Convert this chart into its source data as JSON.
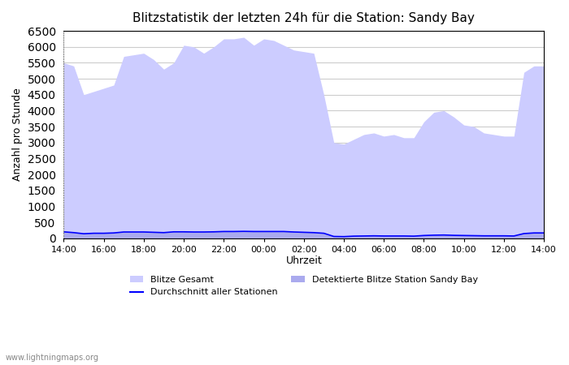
{
  "title": "Blitzstatistik der letzten 24h für die Station: Sandy Bay",
  "xlabel": "Uhrzeit",
  "ylabel": "Anzahl pro Stunde",
  "watermark": "www.lightningmaps.org",
  "ylim": [
    0,
    6500
  ],
  "yticks": [
    0,
    500,
    1000,
    1500,
    2000,
    2500,
    3000,
    3500,
    4000,
    4500,
    5000,
    5500,
    6000,
    6500
  ],
  "xtick_labels": [
    "14:00",
    "16:00",
    "18:00",
    "20:00",
    "22:00",
    "00:00",
    "02:00",
    "04:00",
    "06:00",
    "08:00",
    "10:00",
    "12:00",
    "14:00"
  ],
  "bg_color": "#ffffff",
  "grid_color": "#cccccc",
  "fill_gesamt_color": "#ccccff",
  "fill_station_color": "#aaaaee",
  "line_avg_color": "#0000ff",
  "legend_entries": [
    "Blitze Gesamt",
    "Detektierte Blitze Station Sandy Bay",
    "Durchschnitt aller Stationen"
  ],
  "time_hours": [
    0,
    0.5,
    1,
    1.5,
    2,
    2.5,
    3,
    3.5,
    4,
    4.5,
    5,
    5.5,
    6,
    6.5,
    7,
    7.5,
    8,
    8.5,
    9,
    9.5,
    10,
    10.5,
    11,
    11.5,
    12,
    12.5,
    13,
    13.5,
    14,
    14.5,
    15,
    15.5,
    16,
    16.5,
    17,
    17.5,
    18,
    18.5,
    19,
    19.5,
    20,
    20.5,
    21,
    21.5,
    22,
    22.5,
    23,
    23.5,
    24
  ],
  "blitze_gesamt": [
    5500,
    5400,
    4500,
    4600,
    4700,
    4800,
    5700,
    5750,
    5800,
    5600,
    5300,
    5500,
    6050,
    6000,
    5800,
    6000,
    6250,
    6250,
    6300,
    6050,
    6250,
    6200,
    6050,
    5900,
    5850,
    5800,
    4500,
    3000,
    2950,
    3100,
    3250,
    3300,
    3200,
    3250,
    3150,
    3150,
    3650,
    3950,
    4000,
    3800,
    3550,
    3500,
    3300,
    3250,
    3200,
    3200,
    5200,
    5400,
    5400
  ],
  "blitze_station": [
    200,
    180,
    150,
    160,
    160,
    170,
    200,
    200,
    200,
    190,
    180,
    210,
    210,
    200,
    200,
    210,
    220,
    220,
    230,
    220,
    220,
    220,
    220,
    200,
    190,
    180,
    160,
    60,
    55,
    70,
    75,
    80,
    75,
    75,
    75,
    70,
    90,
    100,
    105,
    95,
    90,
    85,
    80,
    80,
    80,
    75,
    150,
    170,
    170
  ],
  "avg_stations": [
    200,
    175,
    140,
    155,
    155,
    165,
    195,
    195,
    195,
    185,
    175,
    200,
    200,
    195,
    195,
    200,
    210,
    210,
    215,
    210,
    210,
    210,
    210,
    195,
    185,
    175,
    155,
    55,
    50,
    65,
    70,
    75,
    70,
    70,
    70,
    65,
    85,
    95,
    100,
    90,
    85,
    80,
    75,
    75,
    75,
    70,
    145,
    165,
    165
  ]
}
